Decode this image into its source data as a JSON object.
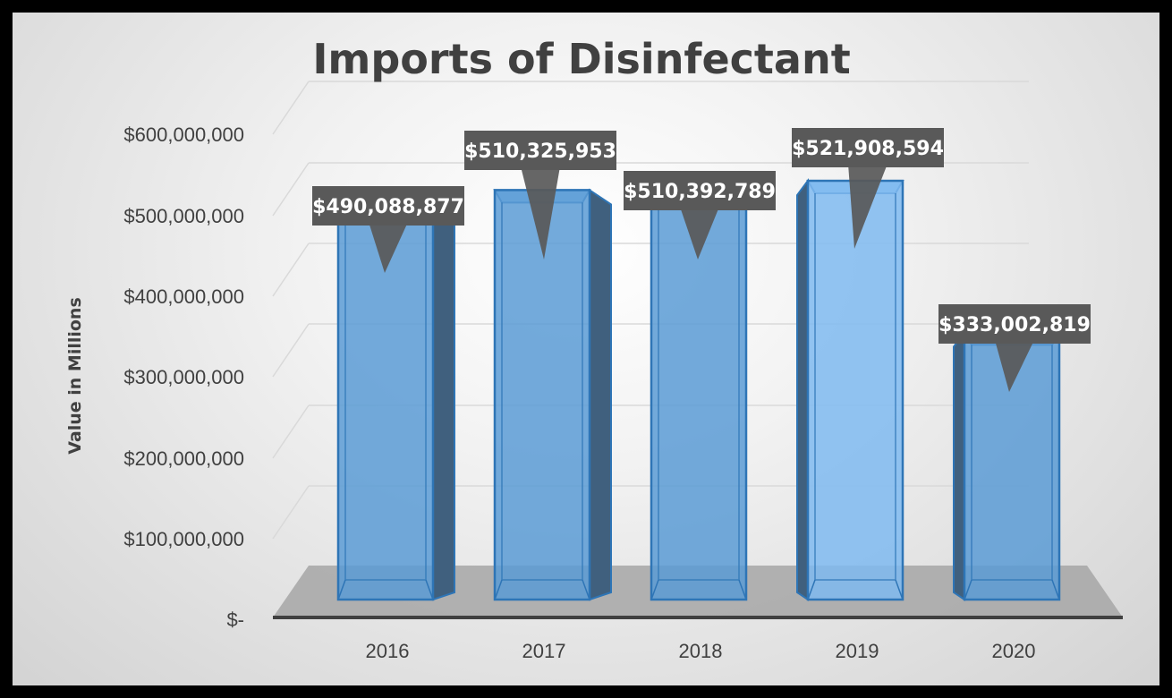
{
  "chart_data": {
    "type": "bar",
    "title": "Imports of Disinfectant",
    "ylabel": "Value in Millions",
    "xlabel": "",
    "categories": [
      "2016",
      "2017",
      "2018",
      "2019",
      "2020"
    ],
    "values": [
      490088877,
      510325953,
      510392789,
      521908594,
      333002819
    ],
    "data_labels": [
      "$490,088,877",
      "$510,325,953",
      "$510,392,789",
      "$521,908,594",
      "$333,002,819"
    ],
    "ylim": [
      0,
      600000000
    ],
    "yticks": [
      0,
      100000000,
      200000000,
      300000000,
      400000000,
      500000000,
      600000000
    ],
    "ytick_labels": [
      "$-",
      "$100,000,000",
      "$200,000,000",
      "$300,000,000",
      "$400,000,000",
      "$500,000,000",
      "$600,000,000"
    ],
    "grid": true,
    "legend": "none",
    "style": "3d-column",
    "colors": {
      "bar": "#5b9bd5",
      "bar_edge": "#2e75b6",
      "label_bg": "#595959",
      "text": "#404040"
    }
  }
}
